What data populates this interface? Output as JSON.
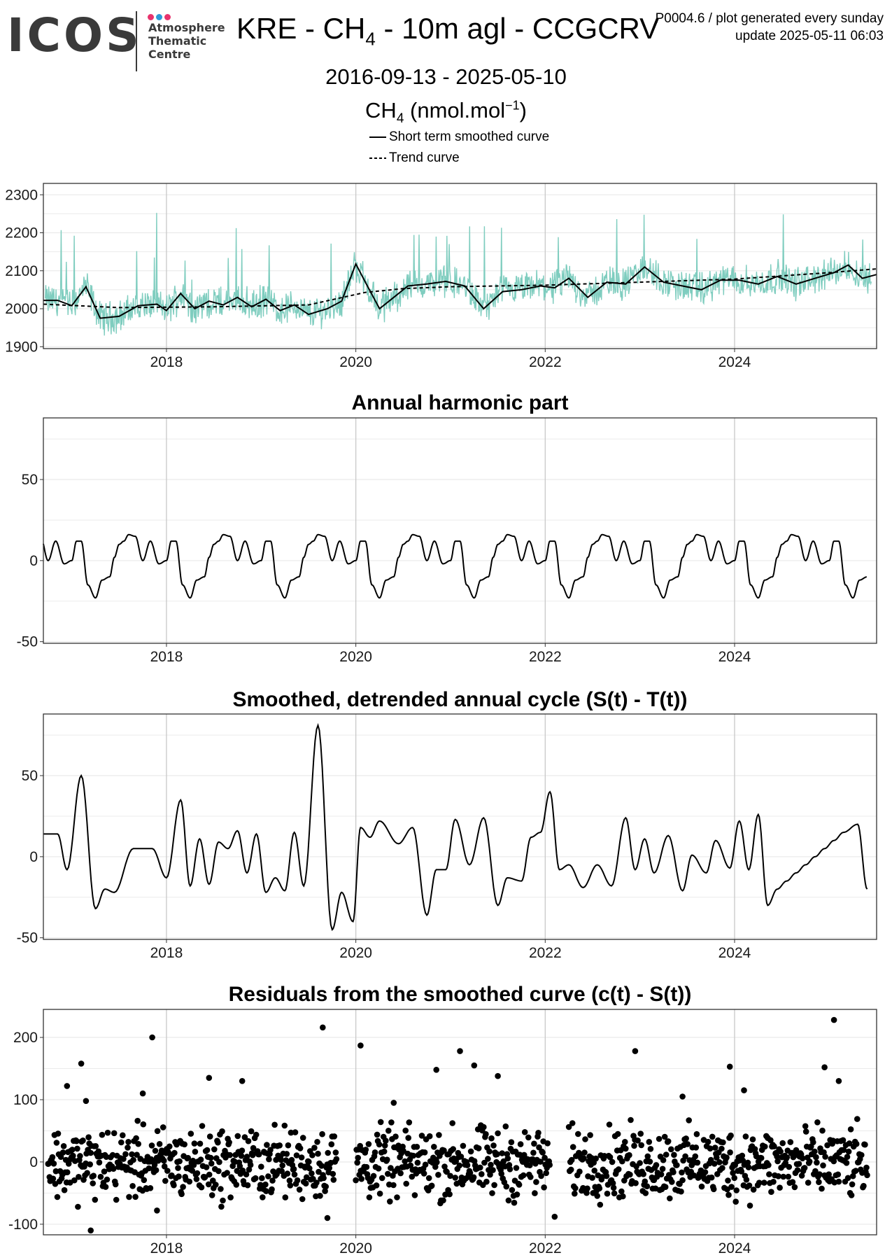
{
  "header": {
    "logo_text": "ICOS",
    "logo_sub": [
      "Atmosphere",
      "Thematic",
      "Centre"
    ],
    "logo_dot_colors": [
      "#e8336d",
      "#2f9bd7",
      "#e8336d"
    ],
    "title_main": "KRE - CH",
    "title_sub": "4",
    "title_rest": " - 10m agl - CCGCRV",
    "meta_line1": "P0004.6 / plot generated every sunday",
    "meta_line2": "update  2025-05-11 06:03",
    "date_range": "2016-09-13 - 2025-05-10",
    "unit_main": "CH",
    "unit_sub": "4",
    "unit_rest": " (nmol.mol",
    "unit_sup": "−1",
    "unit_close": ")"
  },
  "legend": {
    "smoothed": "Short term smoothed curve",
    "trend": "Trend curve"
  },
  "colors": {
    "raw": "#7fcdbf",
    "curve": "#000000",
    "grid": "#ebebeb",
    "major_grid": "#c8c8c8"
  },
  "chart_data": [
    {
      "type": "line",
      "title": "",
      "xticks": [
        2018,
        2020,
        2022,
        2024
      ],
      "xlim": [
        2016.7,
        2025.5
      ],
      "ylim": [
        1895,
        2330
      ],
      "yticks": [
        1900,
        2000,
        2100,
        2200,
        2300
      ],
      "grid": true,
      "series": [
        {
          "name": "Short term smoothed curve",
          "style": "solid",
          "x": [
            2016.7,
            2016.85,
            2017.0,
            2017.15,
            2017.3,
            2017.5,
            2017.7,
            2017.9,
            2018.0,
            2018.15,
            2018.3,
            2018.45,
            2018.6,
            2018.75,
            2018.9,
            2019.05,
            2019.2,
            2019.35,
            2019.5,
            2019.7,
            2019.85,
            2020.0,
            2020.1,
            2020.25,
            2020.4,
            2020.55,
            2020.75,
            2020.95,
            2021.15,
            2021.35,
            2021.55,
            2021.75,
            2021.95,
            2022.1,
            2022.25,
            2022.45,
            2022.65,
            2022.85,
            2023.05,
            2023.25,
            2023.45,
            2023.65,
            2023.85,
            2024.05,
            2024.25,
            2024.45,
            2024.65,
            2024.85,
            2025.05,
            2025.2,
            2025.35,
            2025.5
          ],
          "y": [
            2022,
            2022,
            2008,
            2058,
            1975,
            1980,
            2008,
            2012,
            1995,
            2040,
            2000,
            2020,
            2010,
            2030,
            2005,
            2025,
            1995,
            2010,
            1985,
            2000,
            2020,
            2118,
            2070,
            2000,
            2030,
            2060,
            2065,
            2072,
            2060,
            2000,
            2045,
            2050,
            2060,
            2055,
            2080,
            2030,
            2070,
            2065,
            2110,
            2070,
            2060,
            2050,
            2075,
            2075,
            2065,
            2085,
            2065,
            2080,
            2095,
            2115,
            2080,
            2090
          ]
        },
        {
          "name": "Trend curve",
          "style": "dashed",
          "x": [
            2016.7,
            2017.5,
            2018.5,
            2019.5,
            2020.1,
            2020.5,
            2021.0,
            2022.0,
            2023.0,
            2024.0,
            2025.0,
            2025.5
          ],
          "y": [
            2012,
            2003,
            2005,
            2010,
            2043,
            2053,
            2058,
            2062,
            2070,
            2078,
            2095,
            2105
          ]
        }
      ]
    },
    {
      "type": "line",
      "title": "Annual harmonic part",
      "xticks": [
        2018,
        2020,
        2022,
        2024
      ],
      "xlim": [
        2016.7,
        2025.5
      ],
      "ylim": [
        -51,
        88
      ],
      "yticks": [
        -50,
        0,
        50
      ],
      "grid": true,
      "series": [
        {
          "name": "",
          "style": "solid",
          "cycle_x": [
            0.0,
            0.05,
            0.1,
            0.17,
            0.25,
            0.32,
            0.4,
            0.45,
            0.5,
            0.55,
            0.6,
            0.67,
            0.75,
            0.83,
            0.92,
            1.0
          ],
          "cycle_y": [
            0,
            12,
            12,
            -15,
            -23,
            -12,
            -10,
            2,
            10,
            12,
            16,
            15,
            0,
            12,
            -2,
            0
          ],
          "x_start": 2016.7,
          "x_end": 2025.4
        }
      ]
    },
    {
      "type": "line",
      "title": "Smoothed, detrended annual cycle (S(t) - T(t))",
      "xticks": [
        2018,
        2020,
        2022,
        2024
      ],
      "xlim": [
        2016.7,
        2025.5
      ],
      "ylim": [
        -51,
        88
      ],
      "yticks": [
        -50,
        0,
        50
      ],
      "grid": true,
      "series": [
        {
          "name": "",
          "style": "solid",
          "x": [
            2016.7,
            2016.85,
            2016.95,
            2017.1,
            2017.25,
            2017.35,
            2017.45,
            2017.65,
            2017.85,
            2018.0,
            2018.15,
            2018.25,
            2018.35,
            2018.45,
            2018.55,
            2018.65,
            2018.75,
            2018.85,
            2018.95,
            2019.05,
            2019.15,
            2019.25,
            2019.35,
            2019.45,
            2019.6,
            2019.75,
            2019.85,
            2019.97,
            2020.05,
            2020.15,
            2020.25,
            2020.45,
            2020.6,
            2020.75,
            2020.85,
            2020.95,
            2021.05,
            2021.2,
            2021.35,
            2021.5,
            2021.6,
            2021.75,
            2021.85,
            2021.95,
            2022.05,
            2022.15,
            2022.25,
            2022.4,
            2022.55,
            2022.7,
            2022.85,
            2022.95,
            2023.05,
            2023.15,
            2023.3,
            2023.45,
            2023.55,
            2023.7,
            2023.8,
            2023.95,
            2024.05,
            2024.15,
            2024.25,
            2024.35,
            2024.45,
            2024.55,
            2024.65,
            2024.75,
            2024.85,
            2024.95,
            2025.05,
            2025.15,
            2025.3,
            2025.4
          ],
          "y": [
            14,
            14,
            -8,
            50,
            -32,
            -20,
            -22,
            5,
            5,
            -13,
            35,
            -18,
            11,
            -17,
            9,
            5,
            16,
            -10,
            14,
            -22,
            -13,
            -21,
            15,
            -18,
            81,
            -45,
            -22,
            -40,
            18,
            12,
            22,
            8,
            18,
            -36,
            -8,
            -8,
            23,
            -5,
            24,
            -30,
            -13,
            -15,
            12,
            15,
            40,
            -8,
            -5,
            -19,
            -5,
            -18,
            24,
            -8,
            11,
            -10,
            13,
            -21,
            1,
            -10,
            10,
            -7,
            22,
            -8,
            26,
            -30,
            -20,
            -15,
            -10,
            -5,
            0,
            5,
            10,
            15,
            20,
            -20
          ]
        }
      ]
    },
    {
      "type": "scatter",
      "title": "Residuals from the smoothed curve (c(t) - S(t))",
      "xticks": [
        2018,
        2020,
        2022,
        2024
      ],
      "xlim": [
        2016.7,
        2025.5
      ],
      "ylim": [
        -117,
        245
      ],
      "yticks": [
        -100,
        0,
        100,
        200
      ],
      "grid": true,
      "series": [
        {
          "name": "",
          "style": "points",
          "segments": [
            [
              2016.75,
              2019.8
            ],
            [
              2020.0,
              2022.05
            ],
            [
              2022.25,
              2025.4
            ]
          ],
          "spread": [
            -75,
            90
          ],
          "outliers_x": [
            2016.95,
            2017.1,
            2017.15,
            2017.85,
            2017.75,
            2018.45,
            2018.8,
            2019.65,
            2019.7,
            2020.05,
            2020.4,
            2020.85,
            2021.1,
            2021.25,
            2021.5,
            2022.1,
            2022.95,
            2023.45,
            2023.95,
            2024.1,
            2024.95,
            2025.05,
            2025.1,
            2017.2,
            2017.9
          ],
          "outliers_y": [
            122,
            158,
            98,
            200,
            110,
            135,
            130,
            216,
            -90,
            187,
            95,
            148,
            178,
            155,
            138,
            -88,
            178,
            105,
            153,
            115,
            152,
            228,
            130,
            -110,
            -78
          ]
        }
      ]
    }
  ]
}
